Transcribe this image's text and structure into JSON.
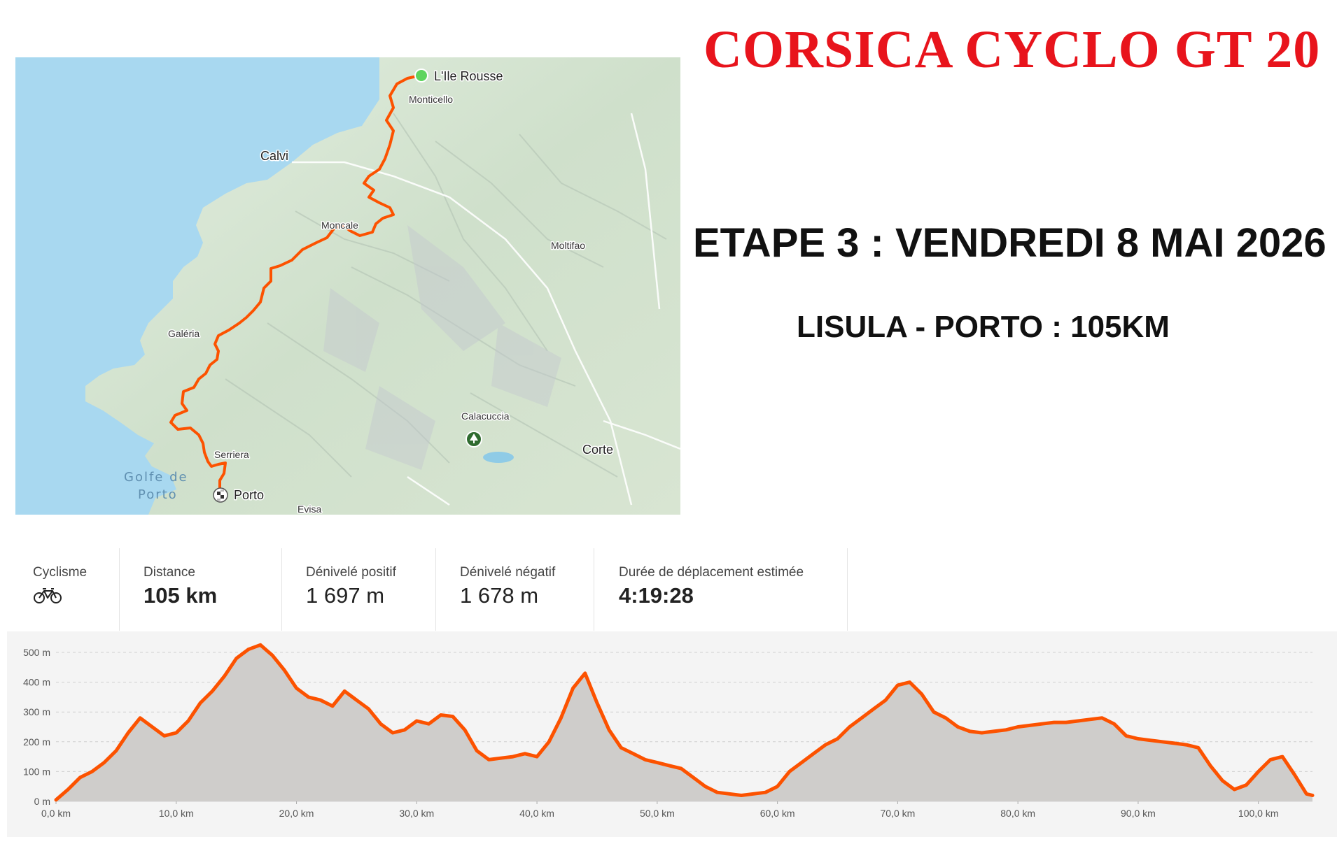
{
  "header": {
    "title": "CORSICA CYCLO GT 20",
    "stage": "ETAPE 3 : VENDREDI 8 MAI 2026",
    "route": "LISULA - PORTO : 105KM"
  },
  "map": {
    "places": [
      {
        "id": "lile-rousse",
        "label": "L'Ile Rousse"
      },
      {
        "id": "monticello",
        "label": "Monticello"
      },
      {
        "id": "calvi",
        "label": "Calvi"
      },
      {
        "id": "moncale",
        "label": "Moncale"
      },
      {
        "id": "moltifao",
        "label": "Moltifao"
      },
      {
        "id": "galeria",
        "label": "Galéria"
      },
      {
        "id": "calacuccia",
        "label": "Calacuccia"
      },
      {
        "id": "corte",
        "label": "Corte"
      },
      {
        "id": "serriera",
        "label": "Serriera"
      },
      {
        "id": "porto",
        "label": "Porto"
      },
      {
        "id": "evisa",
        "label": "Evisa"
      }
    ],
    "sea_label_line1": "Golfe de",
    "sea_label_line2": "Porto",
    "colors": {
      "sea": "#a8d8f0",
      "land": "#d4e6cf",
      "route": "#fc5200",
      "start": "#5ed45e"
    },
    "icons": {
      "start": "start-marker-icon",
      "finish": "checkered-flag-icon",
      "park": "tree-marker-icon"
    }
  },
  "stats": {
    "activity": {
      "label": "Cyclisme",
      "icon": "bike-icon"
    },
    "distance": {
      "label": "Distance",
      "value": "105 km"
    },
    "elev_gain": {
      "label": "Dénivelé positif",
      "value": "1 697 m"
    },
    "elev_loss": {
      "label": "Dénivelé négatif",
      "value": "1 678 m"
    },
    "duration": {
      "label": "Durée de déplacement estimée",
      "value": "4:19:28"
    }
  },
  "chart_data": {
    "type": "area",
    "x_unit": "km",
    "y_unit": "m",
    "xlim": [
      0,
      104.5
    ],
    "ylim": [
      0,
      500
    ],
    "x_ticks": [
      "0,0 km",
      "10,0 km",
      "20,0 km",
      "30,0 km",
      "40,0 km",
      "50,0 km",
      "60,0 km",
      "70,0 km",
      "80,0 km",
      "90,0 km",
      "100,0 km"
    ],
    "y_ticks": [
      "0 m",
      "100 m",
      "200 m",
      "300 m",
      "400 m",
      "500 m"
    ],
    "grid": true,
    "colors": {
      "line": "#fc5200",
      "fill": "#cfcdcb"
    },
    "x": [
      0,
      1,
      2,
      3,
      4,
      5,
      6,
      7,
      8,
      9,
      10,
      11,
      12,
      13,
      14,
      15,
      16,
      17,
      18,
      19,
      20,
      21,
      22,
      23,
      24,
      25,
      26,
      27,
      28,
      29,
      30,
      31,
      32,
      33,
      34,
      35,
      36,
      37,
      38,
      39,
      40,
      41,
      42,
      43,
      44,
      45,
      46,
      47,
      48,
      49,
      50,
      51,
      52,
      53,
      54,
      55,
      56,
      57,
      58,
      59,
      60,
      61,
      62,
      63,
      64,
      65,
      66,
      67,
      68,
      69,
      70,
      71,
      72,
      73,
      74,
      75,
      76,
      77,
      78,
      79,
      80,
      81,
      82,
      83,
      84,
      85,
      86,
      87,
      88,
      89,
      90,
      91,
      92,
      93,
      94,
      95,
      96,
      97,
      98,
      99,
      100,
      101,
      102,
      103,
      104,
      104.5
    ],
    "y": [
      5,
      40,
      80,
      100,
      130,
      170,
      230,
      280,
      250,
      220,
      230,
      270,
      330,
      370,
      420,
      480,
      510,
      525,
      490,
      440,
      380,
      350,
      340,
      320,
      370,
      340,
      310,
      260,
      230,
      240,
      270,
      260,
      290,
      285,
      240,
      170,
      140,
      145,
      150,
      160,
      150,
      200,
      280,
      380,
      430,
      330,
      240,
      180,
      160,
      140,
      130,
      120,
      110,
      80,
      50,
      30,
      25,
      20,
      25,
      30,
      50,
      100,
      130,
      160,
      190,
      210,
      250,
      280,
      310,
      340,
      390,
      400,
      360,
      300,
      280,
      250,
      235,
      230,
      235,
      240,
      250,
      255,
      260,
      265,
      265,
      270,
      275,
      280,
      260,
      220,
      210,
      205,
      200,
      195,
      190,
      180,
      120,
      70,
      40,
      55,
      100,
      140,
      150,
      90,
      25,
      20
    ]
  }
}
